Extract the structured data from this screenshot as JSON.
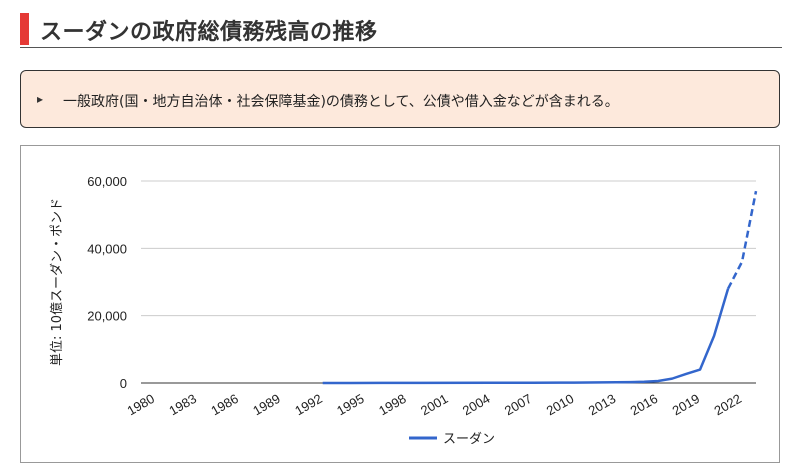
{
  "header": {
    "title": "スーダンの政府総債務残高の推移"
  },
  "note": {
    "bullet": "▸",
    "text": "一般政府(国・地方自治体・社会保障基金)の債務として、公債や借入金などが含まれる。"
  },
  "colors": {
    "accent": "#e53935",
    "note_bg": "#fde9dc",
    "series": "#3366cc"
  },
  "chart_data": {
    "type": "line",
    "ylabel": "単位: 10億スーダン・ポンド",
    "ylim": [
      0,
      60000
    ],
    "yticks": [
      0,
      20000,
      40000,
      60000
    ],
    "ytick_labels": [
      "0",
      "20,000",
      "40,000",
      "60,000"
    ],
    "xlim": [
      1980,
      2024
    ],
    "xticks": [
      "1980",
      "1983",
      "1986",
      "1989",
      "1992",
      "1995",
      "1998",
      "2001",
      "2004",
      "2007",
      "2010",
      "2013",
      "2016",
      "2019",
      "2022"
    ],
    "grid": true,
    "legend": "bottom",
    "series": [
      {
        "name": "スーダン",
        "x": [
          1993,
          1995,
          2000,
          2005,
          2008,
          2010,
          2011,
          2012,
          2013,
          2014,
          2015,
          2016,
          2017,
          2018,
          2019,
          2020,
          2021,
          2022,
          2023,
          2024
        ],
        "values": [
          2,
          10,
          30,
          60,
          80,
          100,
          120,
          150,
          180,
          220,
          270,
          360,
          600,
          1300,
          2700,
          4000,
          14000,
          28000,
          36000,
          57000
        ],
        "projected_from_x": 2022
      }
    ]
  }
}
